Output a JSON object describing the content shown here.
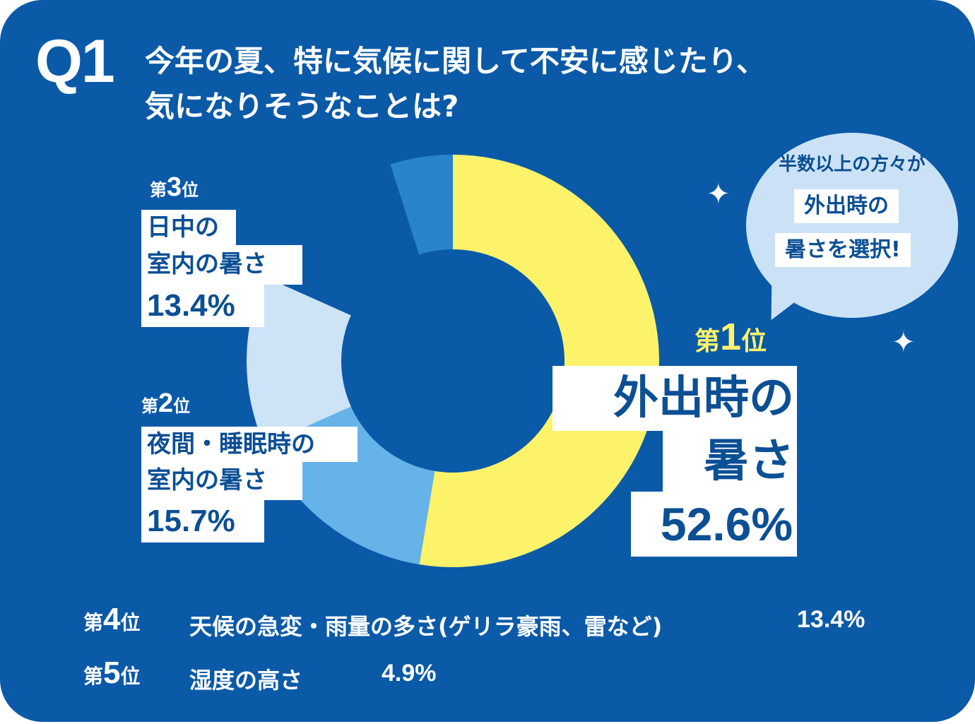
{
  "q_label": "Q1",
  "question": "今年の夏、特に気候に関して不安に感じたり、\n気になりそうなことは?",
  "rank_prefix": "第",
  "rank_suffix": "位",
  "bubble": {
    "line1": "半数以上の方々が",
    "line2": "外出時の",
    "line3": "暑さを選択!"
  },
  "chart_data": {
    "type": "pie",
    "donut": true,
    "start_angle_deg": 0,
    "direction": "clockwise",
    "categories": [
      "外出時の暑さ",
      "夜間・睡眠時の室内の暑さ",
      "日中の室内の暑さ",
      "天候の急変・雨量の多さ(ゲリラ豪雨、雷など)",
      "湿度の高さ"
    ],
    "values": [
      52.6,
      15.7,
      13.4,
      13.4,
      4.9
    ],
    "colors": [
      "#fcf36b",
      "#66b3ea",
      "#cde3f6",
      "#0b5aa8",
      "#2a84cc"
    ],
    "rank1": {
      "rank": "1",
      "label_line1": "外出時の",
      "label_line2": "暑さ",
      "value_text": "52.6%"
    },
    "rank2": {
      "rank": "2",
      "label_line1": "夜間・睡眠時の",
      "label_line2": "室内の暑さ",
      "value_text": "15.7%"
    },
    "rank3": {
      "rank": "3",
      "label_line1": "日中の",
      "label_line2": "室内の暑さ",
      "value_text": "13.4%"
    },
    "rank4": {
      "rank": "4",
      "label": "天候の急変・雨量の多さ(ゲリラ豪雨、雷など)",
      "value_text": "13.4%"
    },
    "rank5": {
      "rank": "5",
      "label": "湿度の高さ",
      "value_text": "4.9%"
    }
  }
}
